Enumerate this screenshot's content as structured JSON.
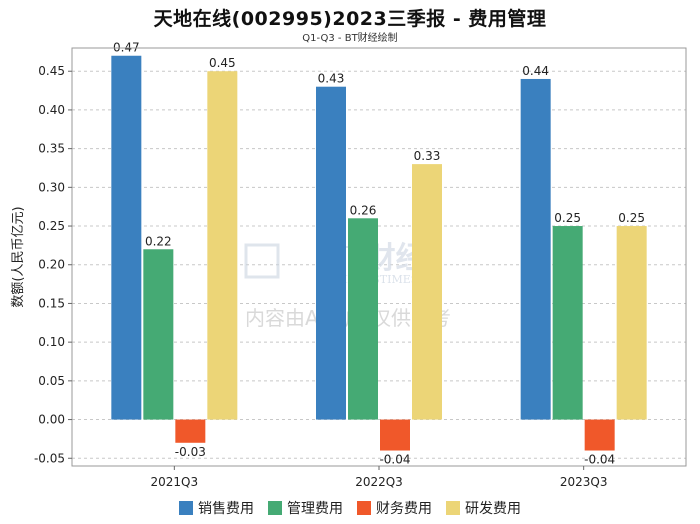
{
  "chart_data": {
    "type": "bar",
    "title": "天地在线(002995)2023三季报 - 费用管理",
    "subtitle": "Q1-Q3 - BT财经绘制",
    "ylabel": "数额(人民币亿元)",
    "xlabel": "",
    "categories": [
      "2021Q3",
      "2022Q3",
      "2023Q3"
    ],
    "ylim": [
      -0.06,
      0.48
    ],
    "yticks": [
      -0.05,
      0.0,
      0.05,
      0.1,
      0.15,
      0.2,
      0.25,
      0.3,
      0.35,
      0.4,
      0.45
    ],
    "ytick_labels": [
      "-0.05",
      "0.00",
      "0.05",
      "0.10",
      "0.15",
      "0.20",
      "0.25",
      "0.30",
      "0.35",
      "0.40",
      "0.45"
    ],
    "grid": true,
    "legend_position": "bottom-center",
    "series": [
      {
        "name": "销售费用",
        "color": "#3a80bf",
        "values": [
          0.47,
          0.43,
          0.44
        ],
        "labels": [
          "0.47",
          "0.43",
          "0.44"
        ]
      },
      {
        "name": "管理费用",
        "color": "#45aa74",
        "values": [
          0.22,
          0.26,
          0.25
        ],
        "labels": [
          "0.22",
          "0.26",
          "0.25"
        ]
      },
      {
        "name": "财务费用",
        "color": "#f0582a",
        "values": [
          -0.03,
          -0.04,
          -0.04
        ],
        "labels": [
          "-0.03",
          "-0.04",
          "-0.04"
        ]
      },
      {
        "name": "研发费用",
        "color": "#ecd577",
        "values": [
          0.45,
          0.33,
          0.25
        ],
        "labels": [
          "0.45",
          "0.33",
          "0.25"
        ]
      }
    ],
    "watermark": {
      "brand_text": "BT财经",
      "brand_sub": "BUSINESSTIMES",
      "notice": "内容由AI生成,仅供参考"
    }
  }
}
